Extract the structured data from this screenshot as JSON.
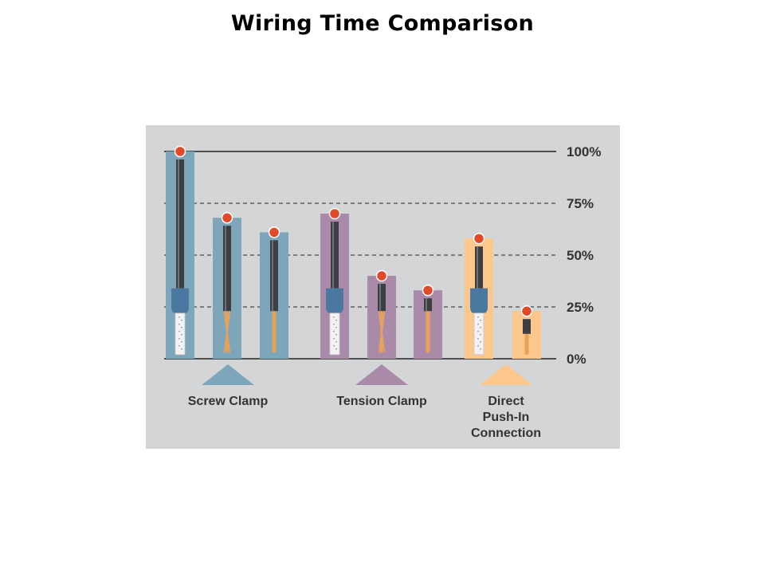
{
  "title": "Wiring Time Comparison",
  "colors": {
    "panel_bg": "#d4d5d6",
    "screw": "#7ea6bb",
    "tension": "#a98aa8",
    "push_in": "#fbc78b",
    "marker": "#e04a2a",
    "ferrule": "#4b78a0",
    "sleeve": "#3c3e42",
    "copper": "#e8a257"
  },
  "chart_data": {
    "type": "bar",
    "title": "Wiring Time Comparison",
    "xlabel": "",
    "ylabel": "",
    "ylim": [
      0,
      100
    ],
    "y_ticks": [
      "0%",
      "25%",
      "50%",
      "75%",
      "100%"
    ],
    "y_tick_values": [
      0,
      25,
      50,
      75,
      100
    ],
    "grid": "dashed horizontal at 25%, 50%, 75%; solid at 0% and 100%",
    "groups": [
      {
        "label": "Screw Clamp",
        "color": "#7ea6bb",
        "bars": [
          {
            "value": 100,
            "wire": "ferrule"
          },
          {
            "value": 68,
            "wire": "stranded"
          },
          {
            "value": 61,
            "wire": "solid"
          }
        ]
      },
      {
        "label": "Tension Clamp",
        "color": "#a98aa8",
        "bars": [
          {
            "value": 70,
            "wire": "ferrule"
          },
          {
            "value": 40,
            "wire": "stranded"
          },
          {
            "value": 33,
            "wire": "solid"
          }
        ]
      },
      {
        "label": "Direct Push-In Connection",
        "label_lines": [
          "Direct",
          "Push-In",
          "Connection"
        ],
        "color": "#fbc78b",
        "bars": [
          {
            "value": 58,
            "wire": "ferrule"
          },
          {
            "value": 23,
            "wire": "solid"
          }
        ]
      }
    ]
  }
}
